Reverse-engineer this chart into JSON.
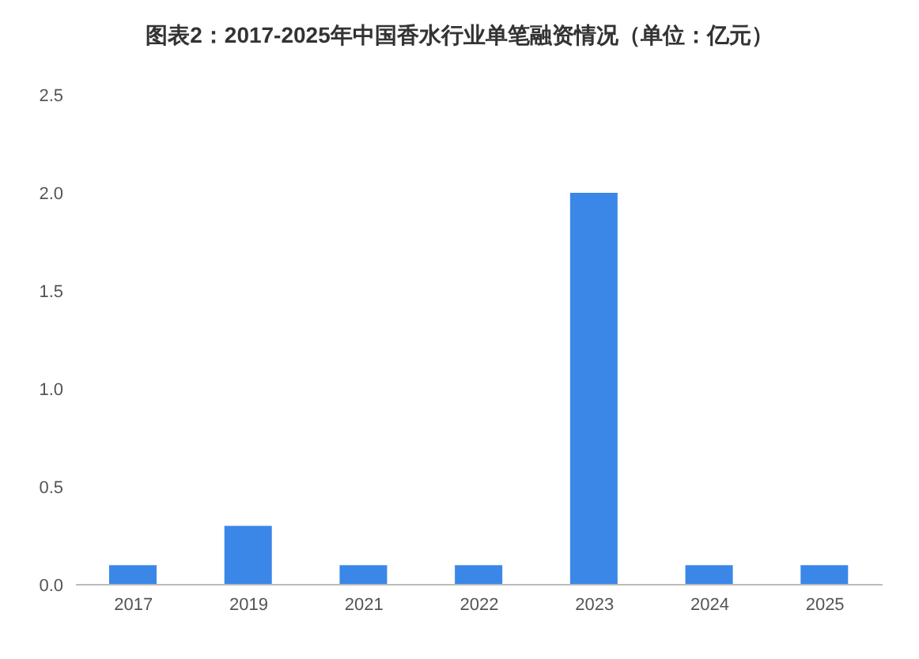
{
  "chart_data": {
    "type": "bar",
    "title": "图表2：2017-2025年中国香水行业单笔融资情况（单位：亿元）",
    "categories": [
      "2017",
      "2019",
      "2021",
      "2022",
      "2023",
      "2024",
      "2025"
    ],
    "values": [
      0.1,
      0.3,
      0.1,
      0.1,
      2.0,
      0.1,
      0.1
    ],
    "color": "#3a87e8",
    "ylim": [
      0,
      2.5
    ],
    "yticks": [
      {
        "value": 0,
        "label": "0.0"
      },
      {
        "value": 0.5,
        "label": "0.5"
      },
      {
        "value": 1,
        "label": "1.0"
      },
      {
        "value": 1.5,
        "label": "1.5"
      },
      {
        "value": 2,
        "label": "2.0"
      },
      {
        "value": 2.5,
        "label": "2.5"
      }
    ],
    "grid": false
  }
}
